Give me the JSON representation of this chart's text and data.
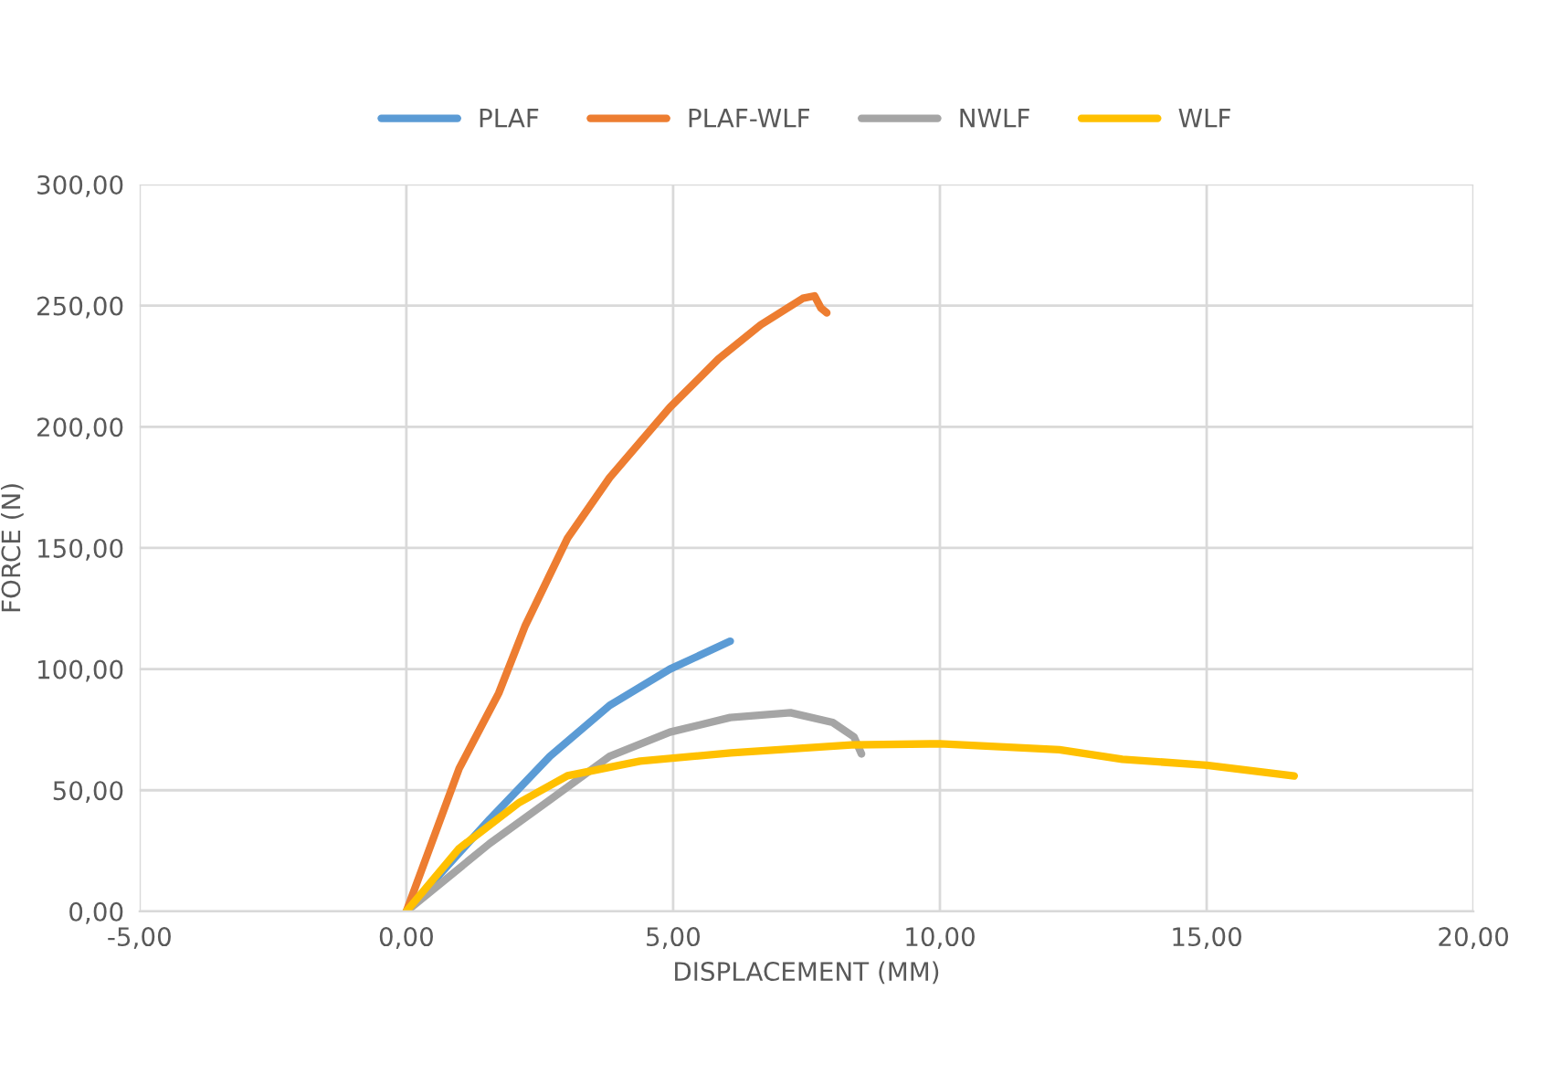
{
  "chart_data": {
    "type": "line",
    "xlabel": "DISPLACEMENT (MM)",
    "ylabel": "FORCE (N)",
    "xlim": [
      -5,
      20
    ],
    "xticks": [
      {
        "value": -5,
        "label": "-5,00"
      },
      {
        "value": 0,
        "label": "0,00"
      },
      {
        "value": 5,
        "label": "5,00"
      },
      {
        "value": 10,
        "label": "10,00"
      },
      {
        "value": 15,
        "label": "15,00"
      },
      {
        "value": 20,
        "label": "20,00"
      }
    ],
    "ylim": [
      0,
      300
    ],
    "yticks": [
      {
        "value": 0,
        "label": "0,00"
      },
      {
        "value": 50,
        "label": "50,00"
      },
      {
        "value": 100,
        "label": "100,00"
      },
      {
        "value": 150,
        "label": "150,00"
      },
      {
        "value": 200,
        "label": "200,00"
      },
      {
        "value": 250,
        "label": "250,00"
      },
      {
        "value": 300,
        "label": "300,00"
      }
    ],
    "grid": true,
    "legend": "top",
    "marker": "none",
    "line_style": "solid",
    "series": [
      {
        "name": "PLAF",
        "color": "#5b9bd5",
        "x": [
          0,
          1.56,
          2.69,
          3.81,
          4.94,
          6.07
        ],
        "values": [
          0,
          38,
          64,
          85,
          100,
          111.5
        ]
      },
      {
        "name": "PLAF-WLF",
        "color": "#ed7d31",
        "x": [
          0,
          0.99,
          1.73,
          2.23,
          3.02,
          3.81,
          4.94,
          5.85,
          6.64,
          7.43,
          7.65,
          7.77,
          7.88
        ],
        "values": [
          0,
          59,
          90,
          118,
          154,
          179,
          208,
          228,
          242,
          253,
          254,
          249,
          247
        ]
      },
      {
        "name": "NWLF",
        "color": "#a5a5a5",
        "x": [
          0,
          1.56,
          2.69,
          3.81,
          4.94,
          6.07,
          7.2,
          7.99,
          8.39,
          8.53
        ],
        "values": [
          0,
          28,
          46,
          64,
          74,
          80,
          82,
          78,
          72,
          65
        ]
      },
      {
        "name": "WLF",
        "color": "#ffc000",
        "x": [
          0,
          0.99,
          2.12,
          3.02,
          4.38,
          6.08,
          8.34,
          10,
          12.24,
          13.42,
          15,
          16.64
        ],
        "values": [
          0,
          26,
          45,
          56,
          62,
          65.4,
          68.7,
          69.2,
          66.7,
          62.8,
          60.3,
          55.9
        ]
      }
    ]
  }
}
